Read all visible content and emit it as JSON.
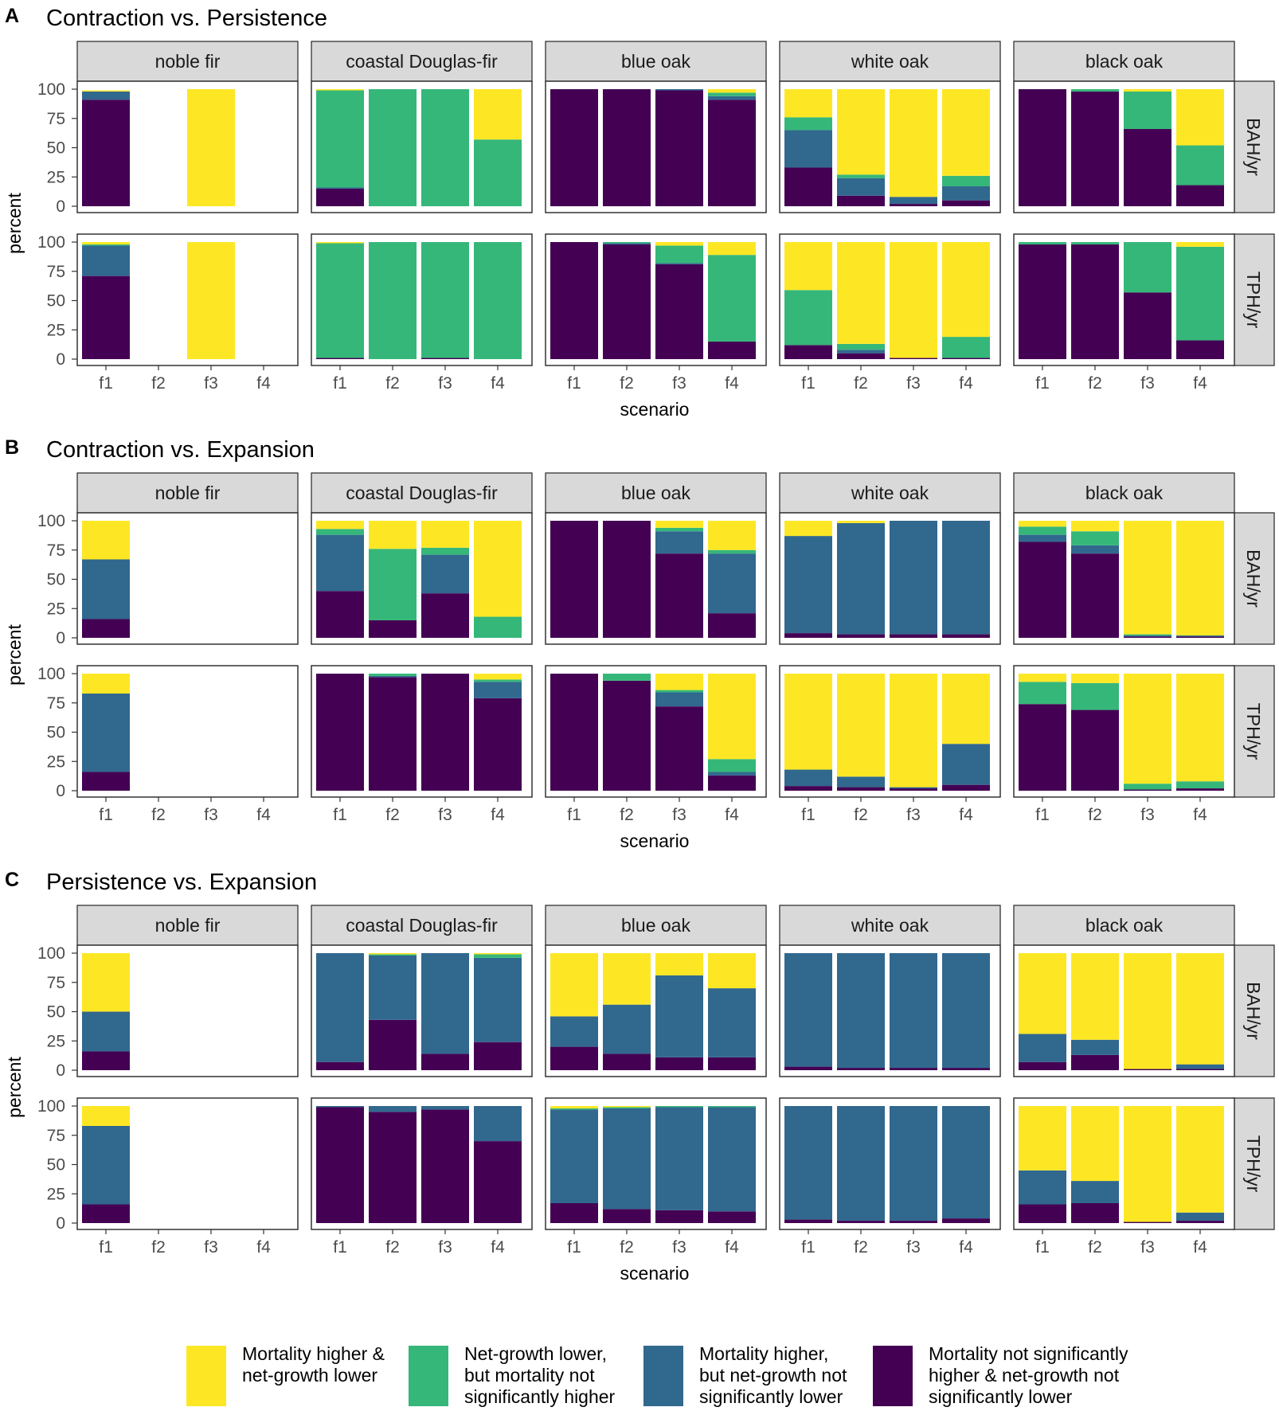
{
  "colors": {
    "mort_higher_growth_lower": "#FDE725",
    "growth_lower_only": "#35B779",
    "mort_higher_only": "#31688E",
    "neither": "#440154",
    "strip_bg": "#D9D9D9",
    "panel_border": "#333333"
  },
  "legend": {
    "items": [
      {
        "key": "mort_higher_growth_lower",
        "lines": [
          "Mortality higher &",
          "net-growth lower"
        ]
      },
      {
        "key": "growth_lower_only",
        "lines": [
          "Net-growth lower,",
          "but mortality not",
          "significantly higher"
        ]
      },
      {
        "key": "mort_higher_only",
        "lines": [
          "Mortality higher,",
          "but net-growth not",
          "significantly lower"
        ]
      },
      {
        "key": "neither",
        "lines": [
          "Mortality not significantly",
          " higher & net-growth not",
          "significantly lower"
        ]
      }
    ]
  },
  "chart_data": {
    "type": "bar",
    "stacked": true,
    "species": [
      "noble fir",
      "coastal Douglas-fir",
      "blue oak",
      "white oak",
      "black oak"
    ],
    "metrics": [
      "BAH/yr",
      "TPH/yr"
    ],
    "categories": [
      "f1",
      "f2",
      "f3",
      "f4"
    ],
    "xlabel": "scenario",
    "ylabel": "percent",
    "yticks": [
      "0",
      "25",
      "50",
      "75",
      "100"
    ],
    "ylim": [
      0,
      100
    ],
    "stack_order": [
      "neither",
      "mort_higher_only",
      "growth_lower_only",
      "mort_higher_growth_lower"
    ],
    "sections": [
      {
        "letter": "A",
        "title": "Contraction vs. Persistence",
        "data": {
          "noble fir": {
            "BAH/yr": [
              [
                91,
                7,
                0,
                1
              ],
              null,
              [
                0,
                0,
                0,
                100
              ],
              null
            ],
            "TPH/yr": [
              [
                71,
                26,
                1,
                2
              ],
              null,
              [
                0,
                0,
                0,
                100
              ],
              null
            ]
          },
          "coastal Douglas-fir": {
            "BAH/yr": [
              [
                15,
                1,
                83,
                1
              ],
              [
                0,
                0,
                100,
                0
              ],
              [
                0,
                0,
                100,
                0
              ],
              [
                0,
                0,
                57,
                43
              ]
            ],
            "TPH/yr": [
              [
                1,
                0,
                98,
                1
              ],
              [
                0,
                0,
                100,
                0
              ],
              [
                1,
                0,
                99,
                0
              ],
              [
                0,
                0,
                100,
                0
              ]
            ]
          },
          "blue oak": {
            "BAH/yr": [
              [
                100,
                0,
                0,
                0
              ],
              [
                100,
                0,
                0,
                0
              ],
              [
                99,
                1,
                0,
                0
              ],
              [
                91,
                3,
                3,
                3
              ]
            ],
            "TPH/yr": [
              [
                100,
                0,
                0,
                0
              ],
              [
                98,
                1,
                1,
                0
              ],
              [
                81,
                1,
                15,
                3
              ],
              [
                15,
                0,
                74,
                11
              ]
            ]
          },
          "white oak": {
            "BAH/yr": [
              [
                33,
                32,
                11,
                24
              ],
              [
                9,
                15,
                3,
                73
              ],
              [
                2,
                6,
                0,
                92
              ],
              [
                5,
                12,
                9,
                74
              ]
            ],
            "TPH/yr": [
              [
                12,
                0,
                47,
                41
              ],
              [
                5,
                3,
                5,
                87
              ],
              [
                1,
                0,
                0,
                99
              ],
              [
                1,
                0,
                18,
                81
              ]
            ]
          },
          "black oak": {
            "BAH/yr": [
              [
                100,
                0,
                0,
                0
              ],
              [
                98,
                0,
                2,
                0
              ],
              [
                66,
                0,
                32,
                2
              ],
              [
                18,
                0,
                34,
                48
              ]
            ],
            "TPH/yr": [
              [
                98,
                0,
                2,
                0
              ],
              [
                98,
                0,
                2,
                0
              ],
              [
                57,
                0,
                43,
                0
              ],
              [
                16,
                0,
                80,
                4
              ]
            ]
          }
        }
      },
      {
        "letter": "B",
        "title": "Contraction vs. Expansion",
        "data": {
          "noble fir": {
            "BAH/yr": [
              [
                16,
                51,
                0,
                33
              ],
              null,
              null,
              null
            ],
            "TPH/yr": [
              [
                16,
                67,
                0,
                17
              ],
              null,
              null,
              null
            ]
          },
          "coastal Douglas-fir": {
            "BAH/yr": [
              [
                40,
                48,
                5,
                7
              ],
              [
                15,
                0,
                61,
                24
              ],
              [
                38,
                33,
                6,
                23
              ],
              [
                0,
                0,
                18,
                82
              ]
            ],
            "TPH/yr": [
              [
                100,
                0,
                0,
                0
              ],
              [
                97,
                1,
                2,
                0
              ],
              [
                100,
                0,
                0,
                0
              ],
              [
                79,
                14,
                2,
                5
              ]
            ]
          },
          "blue oak": {
            "BAH/yr": [
              [
                100,
                0,
                0,
                0
              ],
              [
                100,
                0,
                0,
                0
              ],
              [
                72,
                19,
                3,
                6
              ],
              [
                21,
                51,
                3,
                25
              ]
            ],
            "TPH/yr": [
              [
                100,
                0,
                0,
                0
              ],
              [
                94,
                0,
                6,
                0
              ],
              [
                72,
                12,
                2,
                14
              ],
              [
                13,
                3,
                11,
                73
              ]
            ]
          },
          "white oak": {
            "BAH/yr": [
              [
                4,
                83,
                0,
                13
              ],
              [
                3,
                95,
                0,
                2
              ],
              [
                3,
                97,
                0,
                0
              ],
              [
                3,
                97,
                0,
                0
              ]
            ],
            "TPH/yr": [
              [
                4,
                14,
                0,
                82
              ],
              [
                3,
                9,
                0,
                88
              ],
              [
                2,
                1,
                0,
                97
              ],
              [
                5,
                35,
                0,
                60
              ]
            ]
          },
          "black oak": {
            "BAH/yr": [
              [
                82,
                6,
                7,
                5
              ],
              [
                72,
                7,
                12,
                9
              ],
              [
                1,
                1,
                1,
                97
              ],
              [
                1,
                1,
                0,
                98
              ]
            ],
            "TPH/yr": [
              [
                74,
                0,
                19,
                7
              ],
              [
                69,
                0,
                23,
                8
              ],
              [
                1,
                0,
                5,
                94
              ],
              [
                2,
                0,
                6,
                92
              ]
            ]
          }
        }
      },
      {
        "letter": "C",
        "title": "Persistence vs. Expansion",
        "data": {
          "noble fir": {
            "BAH/yr": [
              [
                16,
                34,
                0,
                50
              ],
              null,
              null,
              null
            ],
            "TPH/yr": [
              [
                16,
                67,
                0,
                17
              ],
              null,
              null,
              null
            ]
          },
          "coastal Douglas-fir": {
            "BAH/yr": [
              [
                7,
                93,
                0,
                0
              ],
              [
                43,
                55,
                1,
                1
              ],
              [
                14,
                86,
                0,
                0
              ],
              [
                24,
                72,
                3,
                1
              ]
            ],
            "TPH/yr": [
              [
                99,
                1,
                0,
                0
              ],
              [
                95,
                5,
                0,
                0
              ],
              [
                97,
                3,
                0,
                0
              ],
              [
                70,
                30,
                0,
                0
              ]
            ]
          },
          "blue oak": {
            "BAH/yr": [
              [
                20,
                26,
                0,
                54
              ],
              [
                14,
                42,
                0,
                44
              ],
              [
                11,
                70,
                0,
                19
              ],
              [
                11,
                59,
                0,
                30
              ]
            ],
            "TPH/yr": [
              [
                17,
                80,
                1,
                2
              ],
              [
                12,
                86,
                1,
                1
              ],
              [
                11,
                88,
                1,
                0
              ],
              [
                10,
                89,
                1,
                0
              ]
            ]
          },
          "white oak": {
            "BAH/yr": [
              [
                3,
                97,
                0,
                0
              ],
              [
                2,
                98,
                0,
                0
              ],
              [
                2,
                98,
                0,
                0
              ],
              [
                2,
                98,
                0,
                0
              ]
            ],
            "TPH/yr": [
              [
                3,
                97,
                0,
                0
              ],
              [
                2,
                98,
                0,
                0
              ],
              [
                2,
                98,
                0,
                0
              ],
              [
                4,
                96,
                0,
                0
              ]
            ]
          },
          "black oak": {
            "BAH/yr": [
              [
                7,
                24,
                0,
                69
              ],
              [
                13,
                13,
                0,
                74
              ],
              [
                1,
                0,
                0,
                99
              ],
              [
                1,
                4,
                0,
                95
              ]
            ],
            "TPH/yr": [
              [
                16,
                29,
                0,
                55
              ],
              [
                17,
                19,
                0,
                64
              ],
              [
                1,
                0,
                0,
                99
              ],
              [
                2,
                7,
                0,
                91
              ]
            ]
          }
        }
      }
    ]
  }
}
